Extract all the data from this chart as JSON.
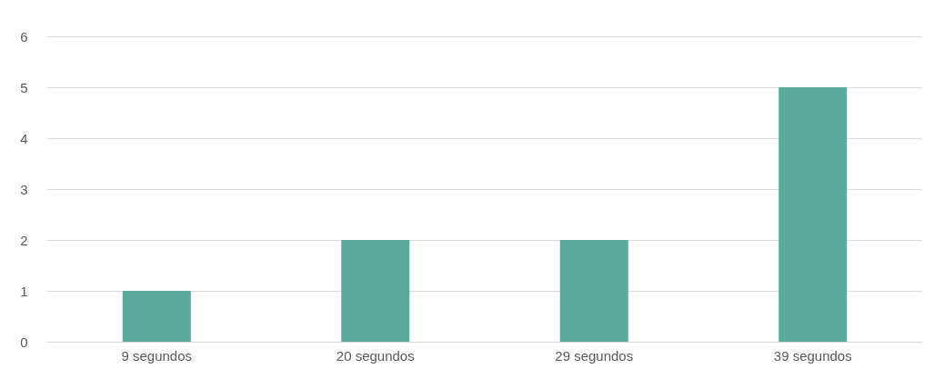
{
  "chart_data": {
    "type": "bar",
    "categories": [
      "9 segundos",
      "20 segundos",
      "29 segundos",
      "39 segundos"
    ],
    "values": [
      1,
      2,
      2,
      5
    ],
    "color": "#5ba89c",
    "ylim": [
      0,
      6
    ],
    "yticks": [
      0,
      1,
      2,
      3,
      4,
      5,
      6
    ],
    "grid": "y"
  }
}
